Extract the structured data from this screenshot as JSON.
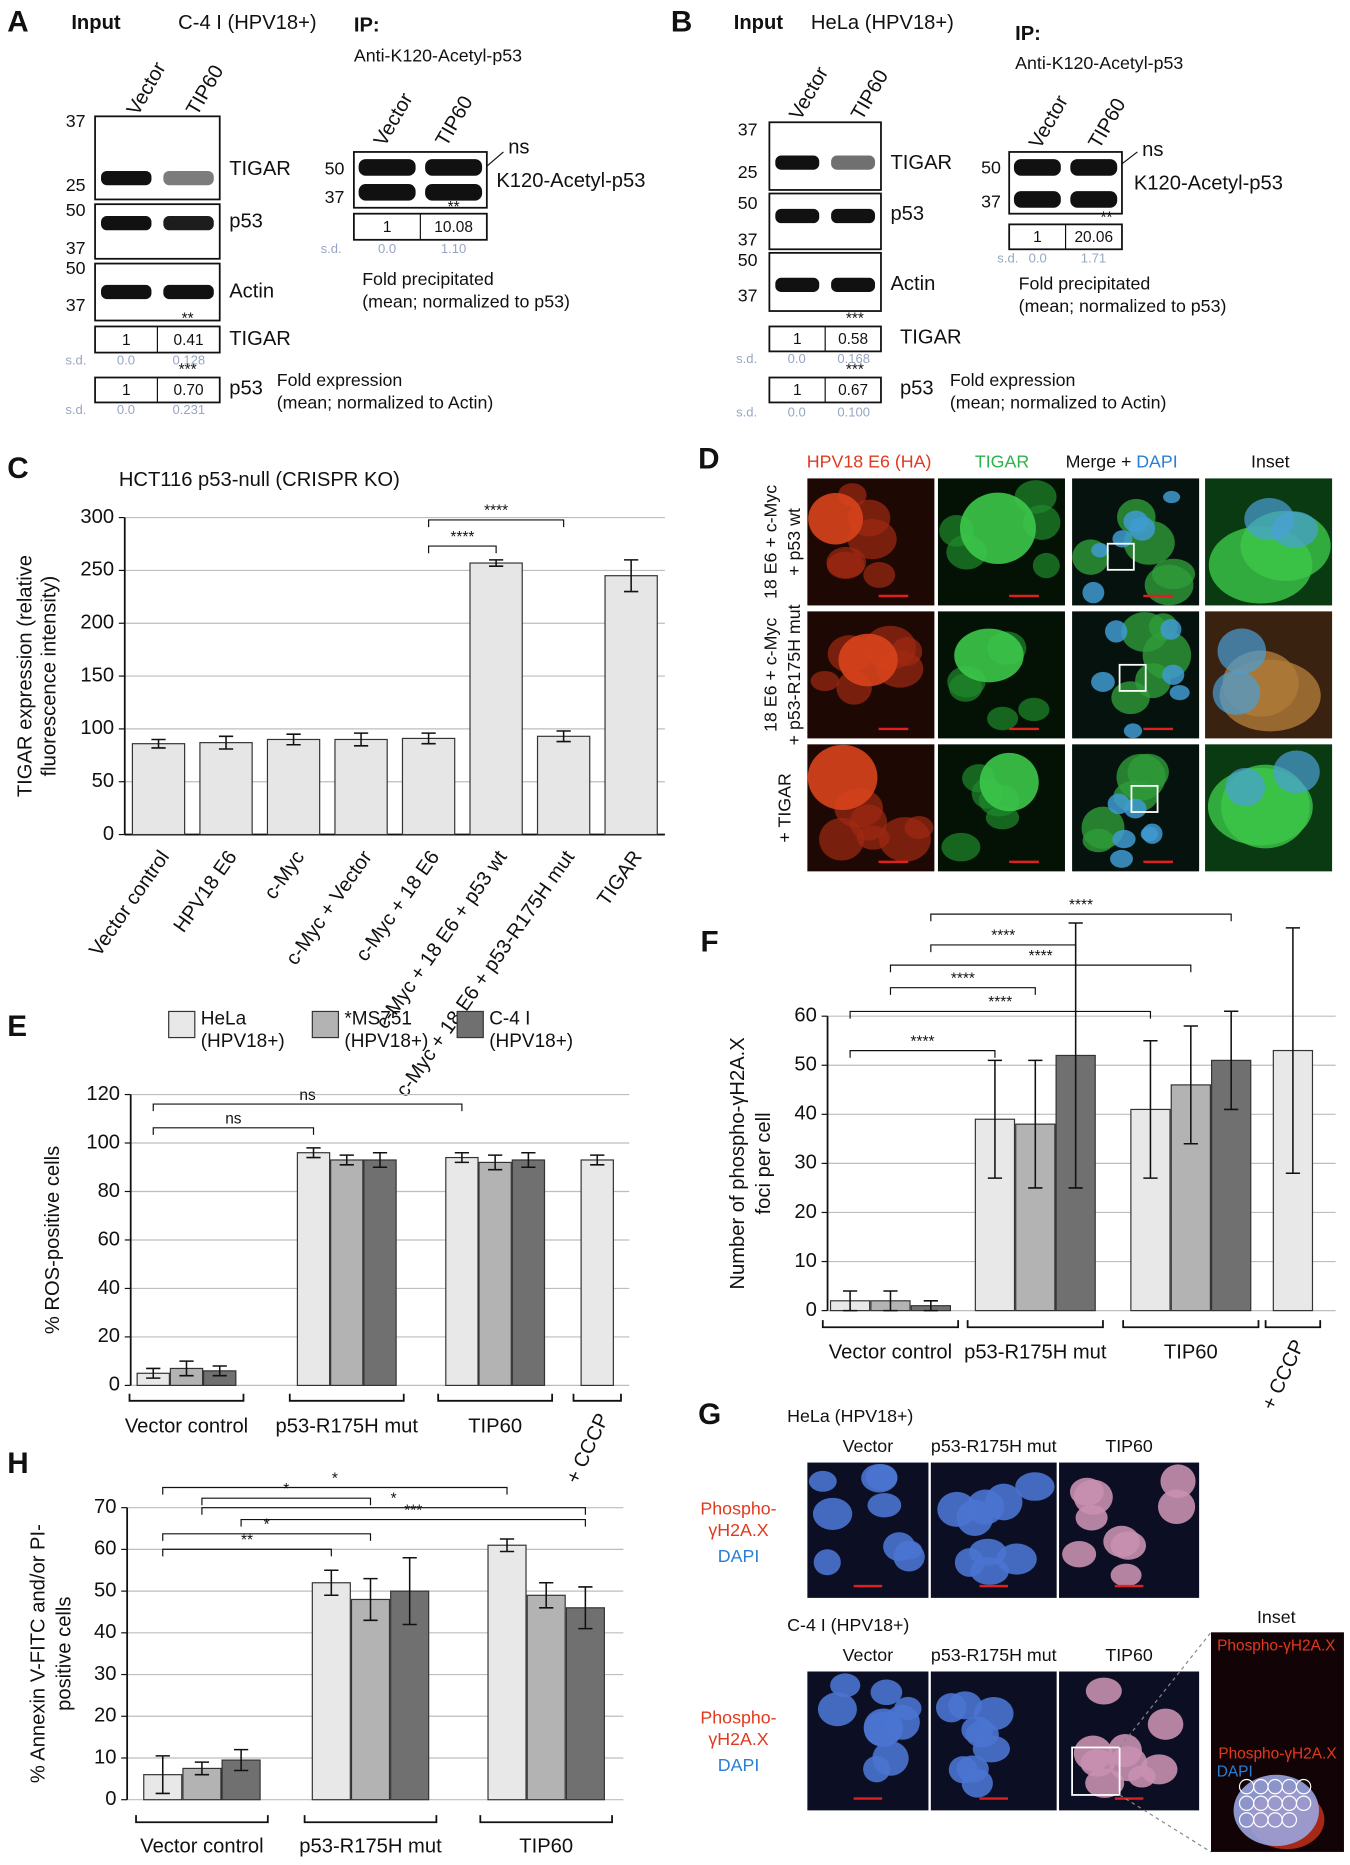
{
  "panel_a": {
    "letter": "A",
    "input": "Input",
    "cell_line": "C-4 I (HPV18+)",
    "lanes": [
      "Vector",
      "TIP60"
    ],
    "markers": [
      "37",
      "25",
      "50",
      "37",
      "50",
      "37"
    ],
    "blots": [
      "TIGAR",
      "p53",
      "Actin"
    ],
    "quant": [
      {
        "name": "TIGAR",
        "values": [
          "1",
          "0.41"
        ],
        "significance": "**",
        "sd_label": "s.d.",
        "sd": [
          "0.0",
          "0.128"
        ]
      },
      {
        "name": "p53",
        "values": [
          "1",
          "0.70"
        ],
        "significance": "***",
        "sd_label": "s.d.",
        "sd": [
          "0.0",
          "0.231"
        ]
      }
    ],
    "quant_caption": [
      "Fold expression",
      "(mean; normalized to Actin)"
    ],
    "ip": {
      "title": "IP:",
      "antibody": "Anti-K120-Acetyl-p53",
      "lanes": [
        "Vector",
        "TIP60"
      ],
      "markers": [
        "50",
        "37"
      ],
      "ns": "ns",
      "blot": "K120-Acetyl-p53",
      "quant": {
        "values": [
          "1",
          "10.08"
        ],
        "significance": "**",
        "sd_label": "s.d.",
        "sd": [
          "0.0",
          "1.10"
        ]
      },
      "caption": [
        "Fold precipitated",
        "(mean; normalized to p53)"
      ]
    }
  },
  "panel_b": {
    "letter": "B",
    "input": "Input",
    "cell_line": "HeLa (HPV18+)",
    "lanes": [
      "Vector",
      "TIP60"
    ],
    "markers": [
      "37",
      "25",
      "50",
      "37",
      "50",
      "37"
    ],
    "blots": [
      "TIGAR",
      "p53",
      "Actin"
    ],
    "quant": [
      {
        "name": "TIGAR",
        "values": [
          "1",
          "0.58"
        ],
        "significance": "***",
        "sd_label": "s.d.",
        "sd": [
          "0.0",
          "0.168"
        ]
      },
      {
        "name": "p53",
        "values": [
          "1",
          "0.67"
        ],
        "significance": "***",
        "sd_label": "s.d.",
        "sd": [
          "0.0",
          "0.100"
        ]
      }
    ],
    "quant_caption": [
      "Fold expression",
      "(mean; normalized to Actin)"
    ],
    "ip": {
      "title": "IP:",
      "antibody": "Anti-K120-Acetyl-p53",
      "lanes": [
        "Vector",
        "TIP60"
      ],
      "markers": [
        "50",
        "37"
      ],
      "ns": "ns",
      "blot": "K120-Acetyl-p53",
      "quant": {
        "values": [
          "1",
          "20.06"
        ],
        "significance": "**",
        "sd_label": "s.d.",
        "sd": [
          "0.0",
          "1.71"
        ]
      },
      "caption": [
        "Fold precipitated",
        "(mean; normalized to p53)"
      ]
    }
  },
  "panel_d": {
    "letter": "D",
    "columns": [
      "HPV18 E6 (HA)",
      "TIGAR",
      [
        "Merge +",
        "DAPI"
      ],
      "Inset"
    ],
    "rows": [
      [
        "18 E6 + c-Myc",
        "+ p53 wt"
      ],
      [
        "18 E6 + c-Myc",
        "+ p53-R175H mut"
      ],
      [
        "+ TIGAR"
      ]
    ]
  },
  "panel_g": {
    "letter": "G",
    "sections": [
      {
        "cell_line": "HeLa (HPV18+)",
        "columns": [
          "Vector",
          "p53-R175H mut",
          "TIP60"
        ],
        "stain": [
          "Phospho-",
          "γH2A.X"
        ],
        "dapi": "DAPI"
      },
      {
        "cell_line": "C-4 I (HPV18+)",
        "columns": [
          "Vector",
          "p53-R175H mut",
          "TIP60"
        ],
        "stain": [
          "Phospho-",
          "γH2A.X"
        ],
        "dapi": "DAPI"
      }
    ],
    "inset": {
      "title": "Inset",
      "labels": [
        "Phospho-γH2A.X",
        "Phospho-γH2A.X",
        "DAPI"
      ]
    }
  },
  "chart_data": [
    {
      "panel": "C",
      "type": "bar",
      "title": "HCT116 p53-null (CRISPR KO)",
      "ylabel": [
        "TIGAR expression (relative",
        "fluorescence intensity)"
      ],
      "categories": [
        "Vector control",
        "HPV18 E6",
        "c-Myc",
        "c-Myc + Vector",
        "c-Myc + 18 E6",
        "c-Myc + 18 E6 + p53 wt",
        "c-Myc + 18 E6 + p53-R175H mut",
        "TIGAR"
      ],
      "values": [
        86,
        87,
        90,
        90,
        91,
        257,
        93,
        245
      ],
      "errors": [
        4,
        6,
        5,
        6,
        5,
        3,
        5,
        15
      ],
      "color": "#e6e6e6",
      "ylim": [
        0,
        300
      ],
      "yticks": [
        0,
        50,
        100,
        150,
        200,
        250,
        300
      ],
      "grid": true,
      "annotations": [
        "****",
        "****"
      ]
    },
    {
      "panel": "E",
      "type": "bar",
      "ylabel": "% ROS-positive cells",
      "categories": [
        "Vector control",
        "p53-R175H mut",
        "TIP60",
        "+ CCCP"
      ],
      "series": [
        {
          "name": "HeLa (HPV18+)",
          "color": "#e8e8e8",
          "values": [
            5,
            96,
            94,
            93
          ],
          "errors": [
            2,
            2,
            2,
            2
          ]
        },
        {
          "name": "*MS751 (HPV18+)",
          "color": "#b3b3b3",
          "values": [
            7,
            93,
            92,
            null
          ],
          "errors": [
            3,
            2,
            3,
            null
          ]
        },
        {
          "name": "C-4 I (HPV18+)",
          "color": "#707070",
          "values": [
            6,
            93,
            93,
            null
          ],
          "errors": [
            2,
            3,
            3,
            null
          ]
        }
      ],
      "ylim": [
        0,
        120
      ],
      "yticks": [
        0,
        20,
        40,
        60,
        80,
        100,
        120
      ],
      "grid": true,
      "legend": "top",
      "annotations": [
        "ns",
        "ns"
      ]
    },
    {
      "panel": "F",
      "type": "bar",
      "ylabel": [
        "Number of phospho-γH2A.X",
        "foci per cell"
      ],
      "categories": [
        "Vector control",
        "p53-R175H mut",
        "TIP60",
        "+ CCCP"
      ],
      "series": [
        {
          "color": "#e8e8e8",
          "values": [
            2,
            39,
            41,
            53
          ],
          "errors": [
            2,
            12,
            14,
            25
          ]
        },
        {
          "color": "#b3b3b3",
          "values": [
            2,
            38,
            46,
            null
          ],
          "errors": [
            2,
            13,
            12,
            null
          ]
        },
        {
          "color": "#707070",
          "values": [
            1,
            52,
            51,
            null
          ],
          "errors": [
            1,
            27,
            10,
            null
          ]
        }
      ],
      "ylim": [
        0,
        60
      ],
      "yticks": [
        0,
        10,
        20,
        30,
        40,
        50,
        60
      ],
      "grid": true,
      "annotations": [
        "****",
        "****",
        "****",
        "****",
        "****",
        "****"
      ]
    },
    {
      "panel": "H",
      "type": "bar",
      "ylabel": [
        "% Annexin V-FITC and/or PI-",
        "positive cells"
      ],
      "categories": [
        "Vector control",
        "p53-R175H mut",
        "TIP60"
      ],
      "series": [
        {
          "color": "#e8e8e8",
          "values": [
            6,
            52,
            61
          ],
          "errors": [
            4.5,
            3,
            1.5
          ]
        },
        {
          "color": "#b3b3b3",
          "values": [
            7.5,
            48,
            49
          ],
          "errors": [
            1.5,
            5,
            3
          ]
        },
        {
          "color": "#707070",
          "values": [
            9.5,
            50,
            46
          ],
          "errors": [
            2.5,
            8,
            5
          ]
        }
      ],
      "ylim": [
        0,
        70
      ],
      "yticks": [
        0,
        10,
        20,
        30,
        40,
        50,
        60,
        70
      ],
      "grid": true,
      "annotations": [
        "*",
        "*",
        "*",
        "***",
        "*",
        "**"
      ]
    }
  ]
}
